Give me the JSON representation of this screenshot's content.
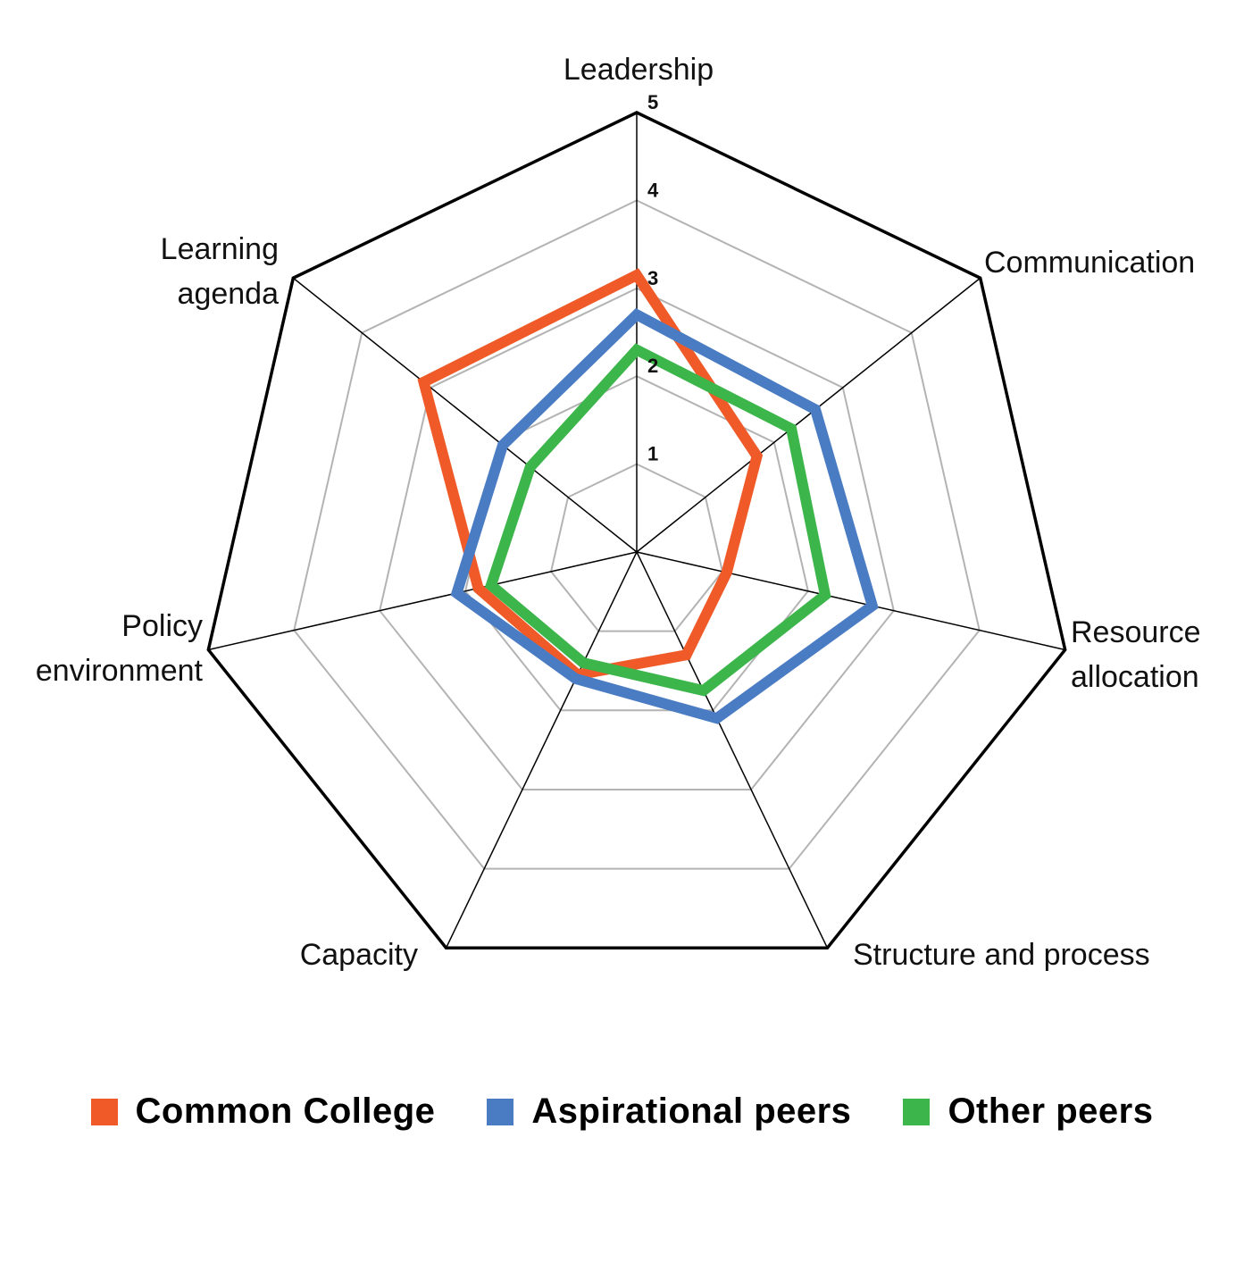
{
  "chart_data": {
    "type": "radar",
    "axes": [
      "Leadership",
      "Communication",
      "Resource allocation",
      "Structure and process",
      "Capacity",
      "Policy environment",
      "Learning agenda"
    ],
    "axis_label_lines": [
      [
        "Leadership"
      ],
      [
        "Communication"
      ],
      [
        "Resource",
        "allocation"
      ],
      [
        "Structure and process"
      ],
      [
        "Capacity"
      ],
      [
        "Policy",
        "environment"
      ],
      [
        "Learning",
        "agenda"
      ]
    ],
    "r_ticks": [
      "1",
      "2",
      "3",
      "4",
      "5"
    ],
    "r_range": [
      0,
      5
    ],
    "grid": true,
    "legend_position": "bottom",
    "series": [
      {
        "name": "Common College",
        "color": "#f05a28",
        "values": [
          3.15,
          1.75,
          1.05,
          1.3,
          1.55,
          1.85,
          3.1
        ]
      },
      {
        "name": "Aspirational peers",
        "color": "#4a7cc4",
        "values": [
          2.7,
          2.6,
          2.75,
          2.1,
          1.6,
          2.1,
          1.95
        ]
      },
      {
        "name": "Other peers",
        "color": "#3cb54a",
        "values": [
          2.3,
          2.25,
          2.2,
          1.75,
          1.4,
          1.7,
          1.55
        ]
      }
    ]
  }
}
